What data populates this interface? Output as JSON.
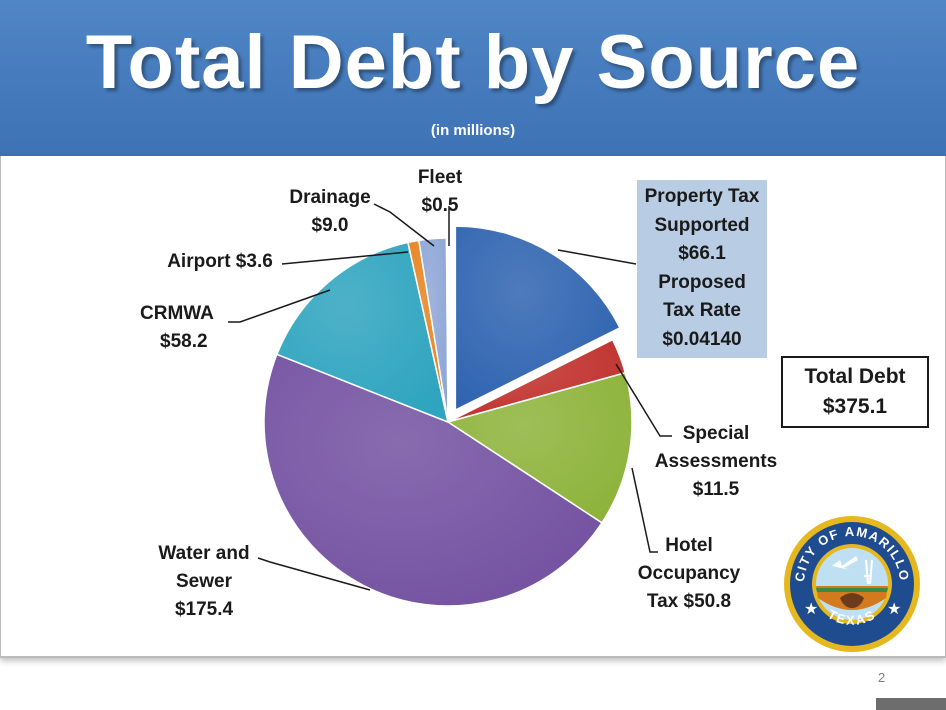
{
  "title": "Total Debt by Source",
  "subtitle": "(in millions)",
  "chart_data": {
    "type": "pie",
    "title": "Total Debt by Source",
    "subtitle": "(in millions)",
    "unit": "millions",
    "slices": [
      {
        "name": "Property Tax Supported",
        "value": 66.1,
        "label_lines": [
          "Property Tax",
          "Supported",
          "$66.1",
          "Proposed",
          "Tax Rate",
          "$0.04140"
        ],
        "color": "#2e63b0",
        "exploded": true
      },
      {
        "name": "Special Assessments",
        "value": 11.5,
        "label_lines": [
          "Special",
          "Assessments",
          "$11.5"
        ],
        "color": "#c0302c"
      },
      {
        "name": "Hotel Occupancy Tax",
        "value": 50.8,
        "label_lines": [
          "Hotel",
          "Occupancy",
          "Tax  $50.8"
        ],
        "color": "#8db33a"
      },
      {
        "name": "Water and Sewer",
        "value": 175.4,
        "label_lines": [
          "Water and",
          "Sewer",
          "$175.4"
        ],
        "color": "#7351a1"
      },
      {
        "name": "CRMWA",
        "value": 58.2,
        "label_lines": [
          "CRMWA",
          "$58.2"
        ],
        "color": "#2ea4bf"
      },
      {
        "name": "Airport",
        "value": 3.6,
        "label_lines": [
          "Airport  $3.6"
        ],
        "color": "#e6821e"
      },
      {
        "name": "Drainage",
        "value": 9.0,
        "label_lines": [
          "Drainage",
          "$9.0"
        ],
        "color": "#8ea6d6"
      },
      {
        "name": "Fleet",
        "value": 0.5,
        "label_lines": [
          "Fleet",
          "$0.5"
        ],
        "color": "#c9d4ea"
      }
    ],
    "total_label": [
      "Total Debt",
      "$375.1"
    ]
  },
  "seal": {
    "text_top": "CITY OF AMARILLO",
    "text_bottom": "TEXAS",
    "ring_color": "#e6b820",
    "field_color": "#1f4b8f"
  },
  "page_number": "2"
}
